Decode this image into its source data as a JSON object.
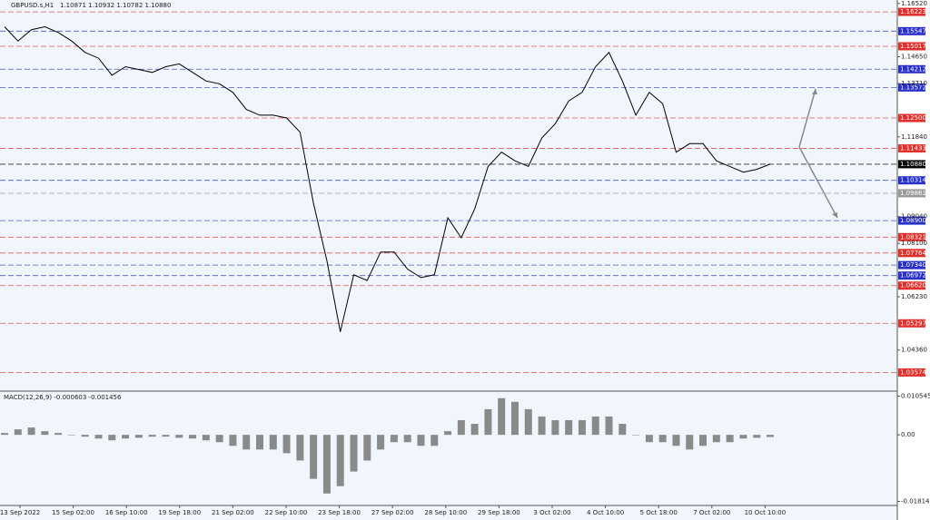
{
  "header": {
    "symbol": "GBPUSD.s,H1",
    "ohlc": "1.10871 1.10932 1.10782 1.10880"
  },
  "chart_data": [
    {
      "type": "line",
      "color": "#000000",
      "values": [
        1.157,
        1.152,
        1.156,
        1.157,
        1.155,
        1.152,
        1.148,
        1.146,
        1.14,
        1.143,
        1.142,
        1.141,
        1.143,
        1.144,
        1.141,
        1.138,
        1.137,
        1.134,
        1.128,
        1.126,
        1.126,
        1.125,
        1.12,
        1.095,
        1.075,
        1.05,
        1.07,
        1.068,
        1.078,
        1.078,
        1.072,
        1.069,
        1.07,
        1.09,
        1.083,
        1.093,
        1.108,
        1.113,
        1.11,
        1.108,
        1.118,
        1.123,
        1.131,
        1.134,
        1.143,
        1.148,
        1.138,
        1.126,
        1.134,
        1.13,
        1.113,
        1.116,
        1.116,
        1.11,
        1.108,
        1.106,
        1.107,
        1.1088
      ],
      "ylim": [
        1.0295,
        1.1664
      ],
      "yticks": [
        {
          "value": 1.1652,
          "label": "1.16520"
        },
        {
          "value": 1.1465,
          "label": "1.14650"
        },
        {
          "value": 1.1371,
          "label": "1.13710"
        },
        {
          "value": 1.1184,
          "label": "1.11840"
        },
        {
          "value": 1.0904,
          "label": "1.09040"
        },
        {
          "value": 1.081,
          "label": "1.08100"
        },
        {
          "value": 1.0623,
          "label": "1.06230"
        },
        {
          "value": 1.0436,
          "label": "1.04360"
        }
      ],
      "levels": [
        {
          "value": 1.16223,
          "label": "1.16223",
          "color": "#e0302c"
        },
        {
          "value": 1.15547,
          "label": "1.15547",
          "color": "#2830c8"
        },
        {
          "value": 1.15017,
          "label": "1.15017",
          "color": "#e0302c"
        },
        {
          "value": 1.14212,
          "label": "1.14212",
          "color": "#2830c8"
        },
        {
          "value": 1.13572,
          "label": "1.13572",
          "color": "#2830c8"
        },
        {
          "value": 1.125,
          "label": "1.12500",
          "color": "#e0302c"
        },
        {
          "value": 1.11433,
          "label": "1.11433",
          "color": "#e0302c"
        },
        {
          "value": 1.1088,
          "label": "1.10880",
          "color": "#000000"
        },
        {
          "value": 1.10314,
          "label": "1.10314",
          "color": "#2830c8"
        },
        {
          "value": 1.09861,
          "label": "1.09861",
          "color": "#9a9a9a"
        },
        {
          "value": 1.089,
          "label": "1.08900",
          "color": "#2830c8"
        },
        {
          "value": 1.08321,
          "label": "1.08321",
          "color": "#e0302c"
        },
        {
          "value": 1.07764,
          "label": "1.07764",
          "color": "#e0302c"
        },
        {
          "value": 1.0734,
          "label": "1.07340",
          "color": "#2830c8"
        },
        {
          "value": 1.06972,
          "label": "1.06972",
          "color": "#2830c8"
        },
        {
          "value": 1.0662,
          "label": "1.06620",
          "color": "#e0302c"
        },
        {
          "value": 1.05297,
          "label": "1.05297",
          "color": "#e0302c"
        },
        {
          "value": 1.03574,
          "label": "1.03574",
          "color": "#e0302c"
        }
      ],
      "x_labels": [
        "13 Sep 2022",
        "15 Sep 02:00",
        "16 Sep 10:00",
        "19 Sep 18:00",
        "21 Sep 02:00",
        "22 Sep 10:00",
        "23 Sep 18:00",
        "27 Sep 02:00",
        "28 Sep 10:00",
        "29 Sep 18:00",
        "3 Oct 02:00",
        "4 Oct 10:00",
        "5 Oct 18:00",
        "7 Oct 02:00",
        "10 Oct 10:00"
      ]
    },
    {
      "type": "bar",
      "title": "MACD(12,26,9) -0.000603 -0.001456",
      "color": "#8a8a8a",
      "values": [
        0.0005,
        0.0015,
        0.002,
        0.001,
        0.0005,
        0,
        -0.0005,
        -0.001,
        -0.0015,
        -0.001,
        -0.0008,
        -0.0005,
        -0.0005,
        -0.0008,
        -0.001,
        -0.0015,
        -0.002,
        -0.003,
        -0.004,
        -0.004,
        -0.004,
        -0.005,
        -0.007,
        -0.012,
        -0.016,
        -0.014,
        -0.01,
        -0.007,
        -0.004,
        -0.002,
        -0.002,
        -0.003,
        -0.003,
        0.001,
        0.004,
        0.003,
        0.007,
        0.01,
        0.009,
        0.007,
        0.005,
        0.004,
        0.004,
        0.004,
        0.005,
        0.005,
        0.003,
        0,
        -0.002,
        -0.002,
        -0.003,
        -0.004,
        -0.003,
        -0.002,
        -0.002,
        -0.001,
        -0.0008,
        -0.0006
      ],
      "ylim": [
        -0.01926,
        0.01167
      ],
      "yticks": [
        0.010545,
        {
          "value": 0,
          "label": "0.00"
        },
        -0.018145
      ]
    }
  ]
}
